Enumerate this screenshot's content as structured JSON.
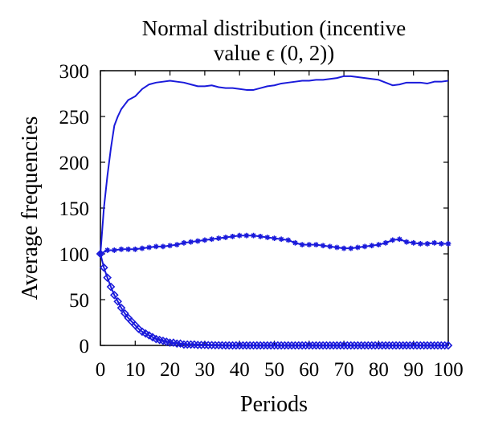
{
  "chart_data": {
    "type": "line",
    "title_line1": "Normal distribution (incentive",
    "title_line2": "value ϵ (0, 2))",
    "xlabel": "Periods",
    "ylabel": "Average frequencies",
    "xlim": [
      0,
      100
    ],
    "ylim": [
      0,
      300
    ],
    "xticks": [
      "0",
      "10",
      "20",
      "30",
      "40",
      "50",
      "60",
      "70",
      "80",
      "90",
      "100"
    ],
    "yticks": [
      "0",
      "50",
      "100",
      "150",
      "200",
      "250",
      "300"
    ],
    "grid": false,
    "legend": "none",
    "color": "#1a1adb",
    "series": [
      {
        "marker": "none",
        "points": [
          [
            0,
            100
          ],
          [
            1,
            150
          ],
          [
            2,
            185
          ],
          [
            3,
            215
          ],
          [
            4,
            240
          ],
          [
            5,
            250
          ],
          [
            6,
            258
          ],
          [
            7,
            263
          ],
          [
            8,
            268
          ],
          [
            9,
            270
          ],
          [
            10,
            272
          ],
          [
            12,
            280
          ],
          [
            14,
            285
          ],
          [
            16,
            287
          ],
          [
            18,
            288
          ],
          [
            20,
            289
          ],
          [
            22,
            288
          ],
          [
            24,
            287
          ],
          [
            26,
            285
          ],
          [
            28,
            283
          ],
          [
            30,
            283
          ],
          [
            32,
            284
          ],
          [
            34,
            282
          ],
          [
            36,
            281
          ],
          [
            38,
            281
          ],
          [
            40,
            280
          ],
          [
            42,
            279
          ],
          [
            44,
            279
          ],
          [
            46,
            281
          ],
          [
            48,
            283
          ],
          [
            50,
            284
          ],
          [
            52,
            286
          ],
          [
            54,
            287
          ],
          [
            56,
            288
          ],
          [
            58,
            289
          ],
          [
            60,
            289
          ],
          [
            62,
            290
          ],
          [
            64,
            290
          ],
          [
            66,
            291
          ],
          [
            68,
            292
          ],
          [
            70,
            294
          ],
          [
            72,
            294
          ],
          [
            74,
            293
          ],
          [
            76,
            292
          ],
          [
            78,
            291
          ],
          [
            80,
            290
          ],
          [
            82,
            287
          ],
          [
            84,
            284
          ],
          [
            86,
            285
          ],
          [
            88,
            287
          ],
          [
            90,
            287
          ],
          [
            92,
            287
          ],
          [
            94,
            286
          ],
          [
            96,
            288
          ],
          [
            98,
            288
          ],
          [
            100,
            289
          ]
        ]
      },
      {
        "marker": "star",
        "points": [
          [
            0,
            100
          ],
          [
            2,
            104
          ],
          [
            4,
            104
          ],
          [
            6,
            105
          ],
          [
            8,
            105
          ],
          [
            10,
            105
          ],
          [
            12,
            106
          ],
          [
            14,
            107
          ],
          [
            16,
            108
          ],
          [
            18,
            108
          ],
          [
            20,
            109
          ],
          [
            22,
            110
          ],
          [
            24,
            112
          ],
          [
            26,
            113
          ],
          [
            28,
            114
          ],
          [
            30,
            115
          ],
          [
            32,
            116
          ],
          [
            34,
            117
          ],
          [
            36,
            118
          ],
          [
            38,
            119
          ],
          [
            40,
            120
          ],
          [
            42,
            120
          ],
          [
            44,
            120
          ],
          [
            46,
            119
          ],
          [
            48,
            118
          ],
          [
            50,
            117
          ],
          [
            52,
            116
          ],
          [
            54,
            115
          ],
          [
            56,
            112
          ],
          [
            58,
            110
          ],
          [
            60,
            110
          ],
          [
            62,
            110
          ],
          [
            64,
            109
          ],
          [
            66,
            108
          ],
          [
            68,
            107
          ],
          [
            70,
            106
          ],
          [
            72,
            106
          ],
          [
            74,
            107
          ],
          [
            76,
            108
          ],
          [
            78,
            109
          ],
          [
            80,
            110
          ],
          [
            82,
            112
          ],
          [
            84,
            115
          ],
          [
            86,
            116
          ],
          [
            88,
            113
          ],
          [
            90,
            112
          ],
          [
            92,
            111
          ],
          [
            94,
            111
          ],
          [
            96,
            112
          ],
          [
            98,
            111
          ],
          [
            100,
            111
          ]
        ]
      },
      {
        "marker": "diamond",
        "points": [
          [
            0,
            100
          ],
          [
            1,
            85
          ],
          [
            2,
            74
          ],
          [
            3,
            64
          ],
          [
            4,
            55
          ],
          [
            5,
            48
          ],
          [
            6,
            41
          ],
          [
            7,
            35
          ],
          [
            8,
            30
          ],
          [
            9,
            26
          ],
          [
            10,
            22
          ],
          [
            11,
            18
          ],
          [
            12,
            15
          ],
          [
            13,
            13
          ],
          [
            14,
            11
          ],
          [
            15,
            9
          ],
          [
            16,
            7
          ],
          [
            17,
            6
          ],
          [
            18,
            5
          ],
          [
            19,
            4
          ],
          [
            20,
            3
          ],
          [
            21,
            3
          ],
          [
            22,
            2
          ],
          [
            23,
            2
          ],
          [
            24,
            1
          ],
          [
            25,
            1
          ],
          [
            26,
            1
          ],
          [
            27,
            1
          ],
          [
            28,
            0.5
          ],
          [
            29,
            0.5
          ],
          [
            30,
            0.5
          ],
          [
            31,
            0.3
          ],
          [
            32,
            0.3
          ],
          [
            33,
            0.2
          ],
          [
            34,
            0.2
          ],
          [
            35,
            0.1
          ],
          [
            36,
            0
          ],
          [
            37,
            0
          ],
          [
            38,
            0
          ],
          [
            39,
            0
          ],
          [
            40,
            0
          ],
          [
            41,
            0
          ],
          [
            42,
            0
          ],
          [
            43,
            0
          ],
          [
            44,
            0
          ],
          [
            45,
            0
          ],
          [
            46,
            0
          ],
          [
            47,
            0
          ],
          [
            48,
            0
          ],
          [
            49,
            0
          ],
          [
            50,
            0
          ],
          [
            51,
            0
          ],
          [
            52,
            0
          ],
          [
            53,
            0
          ],
          [
            54,
            0
          ],
          [
            55,
            0
          ],
          [
            56,
            0
          ],
          [
            57,
            0
          ],
          [
            58,
            0
          ],
          [
            59,
            0
          ],
          [
            60,
            0
          ],
          [
            61,
            0
          ],
          [
            62,
            0
          ],
          [
            63,
            0
          ],
          [
            64,
            0
          ],
          [
            65,
            0
          ],
          [
            66,
            0
          ],
          [
            67,
            0
          ],
          [
            68,
            0
          ],
          [
            69,
            0
          ],
          [
            70,
            0
          ],
          [
            71,
            0
          ],
          [
            72,
            0
          ],
          [
            73,
            0
          ],
          [
            74,
            0
          ],
          [
            75,
            0
          ],
          [
            76,
            0
          ],
          [
            77,
            0
          ],
          [
            78,
            0
          ],
          [
            79,
            0
          ],
          [
            80,
            0
          ],
          [
            81,
            0
          ],
          [
            82,
            0
          ],
          [
            83,
            0
          ],
          [
            84,
            0
          ],
          [
            85,
            0
          ],
          [
            86,
            0
          ],
          [
            87,
            0
          ],
          [
            88,
            0
          ],
          [
            89,
            0
          ],
          [
            90,
            0
          ],
          [
            91,
            0
          ],
          [
            92,
            0
          ],
          [
            93,
            0
          ],
          [
            94,
            0
          ],
          [
            95,
            0
          ],
          [
            96,
            0
          ],
          [
            97,
            0
          ],
          [
            98,
            0
          ],
          [
            99,
            0
          ],
          [
            100,
            0
          ]
        ]
      }
    ]
  }
}
